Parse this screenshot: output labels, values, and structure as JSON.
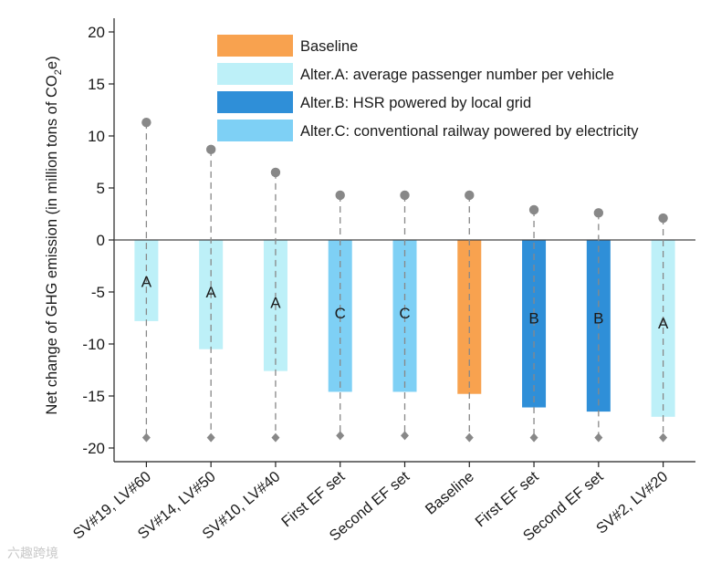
{
  "chart_data": {
    "type": "bar",
    "ylabel_parts": [
      "Net change of GHG emission (in million tons of CO",
      "2",
      "e)"
    ],
    "xlabel": "",
    "ylim": [
      -21,
      21.5
    ],
    "yticks": [
      -20,
      -15,
      -10,
      -5,
      0,
      5,
      10,
      15,
      20
    ],
    "categories": [
      "SV#19, LV#60",
      "SV#14, LV#50",
      "SV#10, LV#40",
      "First EF set",
      "Second EF set",
      "Baseline",
      "First EF set",
      "Second EF set",
      "SV#2, LV#20"
    ],
    "values": [
      -7.8,
      -10.5,
      -12.6,
      -14.6,
      -14.6,
      -14.8,
      -16.1,
      -16.5,
      -17.0
    ],
    "bar_labels": [
      "A",
      "A",
      "A",
      "C",
      "C",
      "",
      "B",
      "B",
      "A"
    ],
    "bar_label_values": [
      -4.0,
      -5.0,
      -6.0,
      -7.0,
      -7.0,
      null,
      -7.5,
      -7.5,
      -8.0
    ],
    "alternatives": [
      "A",
      "A",
      "A",
      "C",
      "C",
      "Baseline",
      "B",
      "B",
      "A"
    ],
    "range_high": [
      11.3,
      8.7,
      6.5,
      4.3,
      4.3,
      4.3,
      2.9,
      2.6,
      2.1
    ],
    "range_low": [
      -19.0,
      -19.0,
      -19.0,
      -18.8,
      -18.8,
      -19.0,
      -19.0,
      -19.0,
      -19.0
    ],
    "legend": [
      {
        "key": "Baseline",
        "label": "Baseline",
        "color": "#f8a24f"
      },
      {
        "key": "A",
        "label": "Alter.A: average passenger number per vehicle",
        "color": "#bdf0f8"
      },
      {
        "key": "B",
        "label": "Alter.B: HSR powered by local grid",
        "color": "#2f8fd8"
      },
      {
        "key": "C",
        "label": "Alter.C: conventional railway powered by electricity",
        "color": "#7ed0f5"
      }
    ],
    "legend_position": "top-right",
    "grid": false
  },
  "watermark": "六趣跨境"
}
